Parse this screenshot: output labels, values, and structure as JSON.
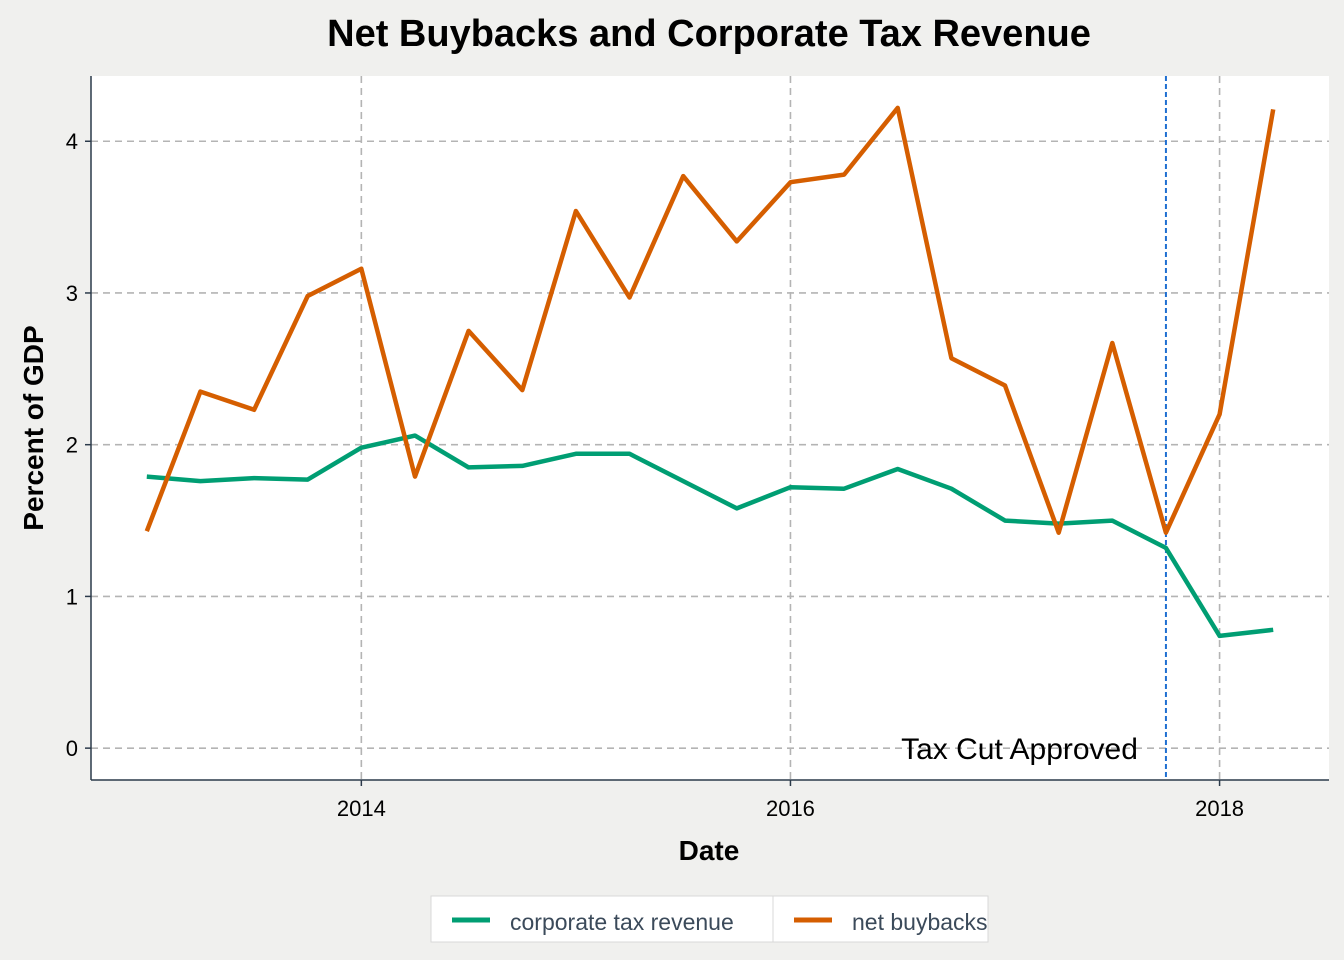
{
  "chart_data": {
    "type": "line",
    "title": "Net Buybacks and Corporate Tax Revenue",
    "xlabel": "Date",
    "ylabel": "Percent of GDP",
    "xlim": [
      2012.74,
      2018.51
    ],
    "ylim": [
      -0.21,
      4.43
    ],
    "x_ticks": [
      2014,
      2016,
      2018
    ],
    "y_ticks": [
      0,
      1,
      2,
      3,
      4
    ],
    "grid": true,
    "legend_position": "bottom",
    "annotation": {
      "text": "Tax Cut Approved",
      "x": 2017.75,
      "y": 0
    },
    "x": [
      2013.0,
      2013.25,
      2013.5,
      2013.75,
      2014.0,
      2014.25,
      2014.5,
      2014.75,
      2015.0,
      2015.25,
      2015.5,
      2015.75,
      2016.0,
      2016.25,
      2016.5,
      2016.75,
      2017.0,
      2017.25,
      2017.5,
      2017.75,
      2018.0,
      2018.25
    ],
    "series": [
      {
        "name": "corporate tax revenue",
        "color": "#009e73",
        "values": [
          1.79,
          1.76,
          1.78,
          1.77,
          1.98,
          2.06,
          1.85,
          1.86,
          1.94,
          1.94,
          1.76,
          1.58,
          1.72,
          1.71,
          1.84,
          1.71,
          1.5,
          1.48,
          1.5,
          1.32,
          0.74,
          0.78
        ]
      },
      {
        "name": "net buybacks",
        "color": "#d55e00",
        "values": [
          1.43,
          2.35,
          2.23,
          2.98,
          3.16,
          1.79,
          2.75,
          2.36,
          3.54,
          2.97,
          3.77,
          3.34,
          3.73,
          3.78,
          4.22,
          2.57,
          2.39,
          1.42,
          2.67,
          1.42,
          2.2,
          4.21
        ]
      }
    ]
  }
}
